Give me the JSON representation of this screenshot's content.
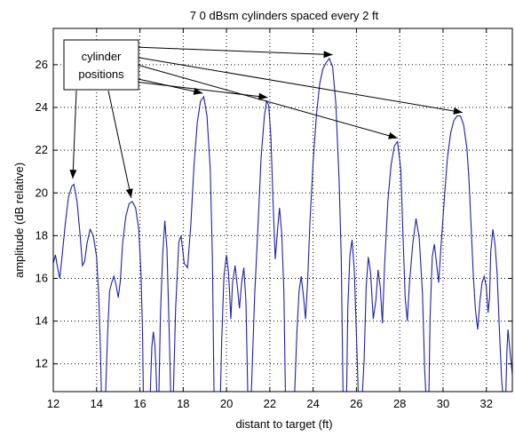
{
  "chart_data": {
    "type": "line",
    "title": "7 0 dBsm cylinders spaced every 2 ft",
    "xlabel": "distant to target (ft)",
    "ylabel": "amplitude (dB relative)",
    "xlim": [
      12,
      33.2
    ],
    "ylim": [
      10.7,
      27.7
    ],
    "xticks": [
      "12",
      "14",
      "16",
      "18",
      "20",
      "22",
      "24",
      "26",
      "28",
      "30",
      "32"
    ],
    "yticks": [
      "12",
      "14",
      "16",
      "18",
      "20",
      "22",
      "24",
      "26"
    ],
    "xtick_values": [
      12,
      14,
      16,
      18,
      20,
      22,
      24,
      26,
      28,
      30,
      32
    ],
    "ytick_values": [
      12,
      14,
      16,
      18,
      20,
      22,
      24,
      26
    ],
    "grid": true,
    "line_color": "#1f1fa8",
    "annotation": {
      "lines": [
        "cylinder",
        "positions"
      ],
      "arrow_targets": [
        {
          "x": 12.9,
          "y": 20.5
        },
        {
          "x": 15.6,
          "y": 19.6
        },
        {
          "x": 18.9,
          "y": 24.5
        },
        {
          "x": 21.9,
          "y": 24.3
        },
        {
          "x": 24.9,
          "y": 26.3
        },
        {
          "x": 27.9,
          "y": 22.4
        },
        {
          "x": 30.9,
          "y": 23.6
        }
      ]
    },
    "series": [
      {
        "values": [
          [
            12.0,
            16.7
          ],
          [
            12.1,
            17.1
          ],
          [
            12.2,
            16.5
          ],
          [
            12.3,
            16.0
          ],
          [
            12.4,
            17.0
          ],
          [
            12.55,
            18.5
          ],
          [
            12.7,
            19.8
          ],
          [
            12.85,
            20.3
          ],
          [
            12.95,
            20.4
          ],
          [
            13.1,
            19.6
          ],
          [
            13.25,
            17.9
          ],
          [
            13.35,
            16.6
          ],
          [
            13.45,
            16.8
          ],
          [
            13.55,
            17.6
          ],
          [
            13.7,
            18.3
          ],
          [
            13.85,
            18.0
          ],
          [
            14.0,
            17.0
          ],
          [
            14.1,
            15.2
          ],
          [
            14.18,
            12.5
          ],
          [
            14.22,
            10.7
          ],
          [
            14.42,
            10.7
          ],
          [
            14.5,
            13.2
          ],
          [
            14.6,
            15.4
          ],
          [
            14.7,
            15.8
          ],
          [
            14.8,
            16.1
          ],
          [
            14.9,
            15.7
          ],
          [
            15.0,
            15.1
          ],
          [
            15.1,
            15.9
          ],
          [
            15.2,
            17.6
          ],
          [
            15.35,
            18.9
          ],
          [
            15.5,
            19.5
          ],
          [
            15.65,
            19.6
          ],
          [
            15.8,
            19.3
          ],
          [
            15.95,
            18.3
          ],
          [
            16.05,
            16.2
          ],
          [
            16.12,
            13.5
          ],
          [
            16.16,
            10.7
          ],
          [
            16.48,
            10.7
          ],
          [
            16.55,
            12.8
          ],
          [
            16.62,
            13.5
          ],
          [
            16.7,
            12.8
          ],
          [
            16.78,
            10.7
          ],
          [
            16.88,
            10.7
          ],
          [
            16.95,
            14.3
          ],
          [
            17.05,
            17.1
          ],
          [
            17.15,
            18.7
          ],
          [
            17.25,
            17.4
          ],
          [
            17.35,
            13.6
          ],
          [
            17.42,
            10.7
          ],
          [
            17.55,
            10.7
          ],
          [
            17.65,
            14.6
          ],
          [
            17.8,
            17.7
          ],
          [
            17.9,
            18.0
          ],
          [
            18.05,
            16.7
          ],
          [
            18.2,
            16.5
          ],
          [
            18.35,
            18.5
          ],
          [
            18.5,
            21.3
          ],
          [
            18.65,
            23.3
          ],
          [
            18.8,
            24.3
          ],
          [
            18.95,
            24.5
          ],
          [
            19.1,
            23.6
          ],
          [
            19.25,
            21.1
          ],
          [
            19.35,
            17.0
          ],
          [
            19.42,
            10.7
          ],
          [
            19.72,
            10.7
          ],
          [
            19.78,
            13.1
          ],
          [
            19.88,
            16.1
          ],
          [
            20.0,
            17.1
          ],
          [
            20.1,
            16.2
          ],
          [
            20.2,
            14.1
          ],
          [
            20.28,
            15.8
          ],
          [
            20.4,
            16.6
          ],
          [
            20.5,
            15.6
          ],
          [
            20.6,
            14.6
          ],
          [
            20.7,
            15.8
          ],
          [
            20.8,
            16.5
          ],
          [
            20.9,
            14.9
          ],
          [
            20.98,
            10.7
          ],
          [
            21.15,
            10.7
          ],
          [
            21.3,
            15.2
          ],
          [
            21.45,
            18.4
          ],
          [
            21.6,
            21.7
          ],
          [
            21.75,
            23.6
          ],
          [
            21.85,
            24.3
          ],
          [
            21.95,
            24.1
          ],
          [
            22.05,
            22.6
          ],
          [
            22.15,
            19.6
          ],
          [
            22.25,
            16.9
          ],
          [
            22.35,
            18.2
          ],
          [
            22.45,
            19.3
          ],
          [
            22.55,
            18.1
          ],
          [
            22.65,
            15.4
          ],
          [
            22.72,
            10.7
          ],
          [
            23.15,
            10.7
          ],
          [
            23.25,
            13.5
          ],
          [
            23.35,
            15.4
          ],
          [
            23.45,
            16.1
          ],
          [
            23.55,
            15.2
          ],
          [
            23.65,
            14.1
          ],
          [
            23.75,
            15.9
          ],
          [
            23.85,
            18.6
          ],
          [
            24.0,
            21.4
          ],
          [
            24.15,
            23.6
          ],
          [
            24.3,
            25.1
          ],
          [
            24.45,
            25.8
          ],
          [
            24.6,
            26.1
          ],
          [
            24.75,
            26.3
          ],
          [
            24.9,
            25.9
          ],
          [
            25.05,
            24.2
          ],
          [
            25.2,
            20.6
          ],
          [
            25.3,
            17.0
          ],
          [
            25.38,
            10.7
          ],
          [
            25.55,
            10.7
          ],
          [
            25.6,
            14.6
          ],
          [
            25.7,
            17.1
          ],
          [
            25.8,
            17.8
          ],
          [
            25.9,
            16.4
          ],
          [
            26.0,
            13.4
          ],
          [
            26.08,
            10.7
          ],
          [
            26.28,
            10.7
          ],
          [
            26.35,
            12.1
          ],
          [
            26.45,
            15.6
          ],
          [
            26.55,
            17.0
          ],
          [
            26.65,
            16.3
          ],
          [
            26.78,
            14.1
          ],
          [
            26.9,
            15.0
          ],
          [
            27.0,
            16.4
          ],
          [
            27.1,
            15.6
          ],
          [
            27.2,
            13.9
          ],
          [
            27.3,
            16.6
          ],
          [
            27.45,
            19.6
          ],
          [
            27.6,
            21.3
          ],
          [
            27.75,
            22.2
          ],
          [
            27.9,
            22.4
          ],
          [
            28.05,
            21.1
          ],
          [
            28.15,
            18.1
          ],
          [
            28.25,
            15.1
          ],
          [
            28.35,
            14.0
          ],
          [
            28.45,
            15.8
          ],
          [
            28.6,
            17.6
          ],
          [
            28.75,
            18.8
          ],
          [
            28.9,
            17.9
          ],
          [
            29.05,
            15.3
          ],
          [
            29.15,
            11.8
          ],
          [
            29.2,
            10.7
          ],
          [
            29.35,
            10.7
          ],
          [
            29.4,
            14.1
          ],
          [
            29.5,
            17.0
          ],
          [
            29.6,
            17.6
          ],
          [
            29.7,
            16.7
          ],
          [
            29.8,
            15.8
          ],
          [
            29.9,
            17.4
          ],
          [
            30.05,
            19.6
          ],
          [
            30.2,
            21.6
          ],
          [
            30.35,
            22.8
          ],
          [
            30.5,
            23.4
          ],
          [
            30.65,
            23.6
          ],
          [
            30.8,
            23.6
          ],
          [
            30.95,
            23.2
          ],
          [
            31.1,
            22.1
          ],
          [
            31.2,
            20.6
          ],
          [
            31.3,
            18.3
          ],
          [
            31.4,
            16.1
          ],
          [
            31.5,
            14.5
          ],
          [
            31.6,
            13.6
          ],
          [
            31.7,
            14.9
          ],
          [
            31.8,
            15.8
          ],
          [
            31.9,
            16.1
          ],
          [
            32.0,
            15.6
          ],
          [
            32.08,
            14.4
          ],
          [
            32.15,
            15.1
          ],
          [
            32.2,
            17.2
          ],
          [
            32.3,
            18.3
          ],
          [
            32.4,
            17.6
          ],
          [
            32.5,
            16.2
          ],
          [
            32.6,
            13.6
          ],
          [
            32.7,
            11.4
          ],
          [
            32.75,
            10.7
          ],
          [
            32.9,
            10.7
          ],
          [
            32.95,
            12.6
          ],
          [
            33.0,
            13.6
          ],
          [
            33.1,
            12.5
          ],
          [
            33.2,
            11.5
          ]
        ]
      }
    ]
  }
}
